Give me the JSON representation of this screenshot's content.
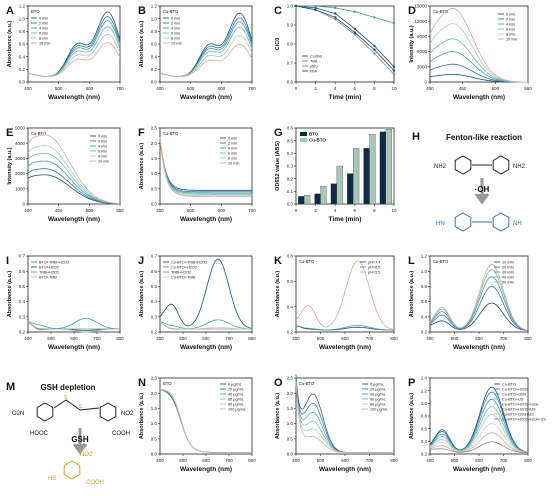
{
  "panels": [
    {
      "id": "A",
      "letter": "A",
      "box_label": "BTO",
      "xlabel": "Wavelength (nm)",
      "ylabel": "Absorbance (a.u.)",
      "xticks": [
        "400",
        "500",
        "600",
        "700"
      ],
      "yticks": [
        "0.0",
        "0.2",
        "0.4",
        "0.6",
        "0.8",
        "1.0",
        "1.2"
      ],
      "legend": [
        "0 min",
        "2 min",
        "4 min",
        "6 min",
        "8 min",
        "10 min"
      ],
      "colors": [
        "#1f4e79",
        "#2e75b6",
        "#41a0a6",
        "#6bbfb4",
        "#9fcfc4",
        "#e3a595"
      ]
    },
    {
      "id": "B",
      "letter": "B",
      "box_label": "Cu-BTO",
      "xlabel": "Wavelength (nm)",
      "ylabel": "Absorbance (a.u.)",
      "xticks": [
        "400",
        "500",
        "600",
        "700"
      ],
      "yticks": [
        "0.0",
        "0.2",
        "0.4",
        "0.6",
        "0.8",
        "1.0",
        "1.2"
      ],
      "legend": [
        "0 min",
        "2 min",
        "4 min",
        "6 min",
        "8 min",
        "10 min"
      ],
      "colors": [
        "#1f4e79",
        "#2e75b6",
        "#41a0a6",
        "#6bbfb4",
        "#9fcfc4",
        "#e3a595"
      ]
    },
    {
      "id": "C",
      "letter": "C",
      "box_label": "",
      "xlabel": "Time (min)",
      "ylabel": "C/C0",
      "xticks": [
        "0",
        "2",
        "4",
        "6",
        "8",
        "10"
      ],
      "yticks": [
        "0.6",
        "0.7",
        "0.8",
        "0.9",
        "1.0"
      ],
      "legend": [
        "Control",
        "TBA",
        "pBQ",
        "FFA"
      ],
      "colors": [
        "#1f4e79",
        "#41a0a6",
        "#888888",
        "#1f4e79"
      ]
    },
    {
      "id": "D",
      "letter": "D",
      "box_label": "Cu-BTO",
      "xlabel": "Wavelength (nm)",
      "ylabel": "Intensity (a.u.)",
      "xticks": [
        "400",
        "450",
        "500",
        "550"
      ],
      "yticks": [
        "0",
        "3000",
        "6000",
        "9000",
        "12000",
        "15000"
      ],
      "legend": [
        "0 min",
        "2 min",
        "4 min",
        "6 min",
        "8 min",
        "10 min"
      ],
      "colors": [
        "#1f4e79",
        "#2e75b6",
        "#41a0a6",
        "#6bbfb4",
        "#9fcfc4",
        "#e3a595"
      ]
    },
    {
      "id": "E",
      "letter": "E",
      "box_label": "Cu-BTO",
      "xlabel": "Wavelength (nm)",
      "ylabel": "Intensity (a.u.)",
      "xticks": [
        "400",
        "450",
        "500",
        "550"
      ],
      "yticks": [
        "0",
        "1000",
        "2000",
        "3000",
        "4000",
        "5000"
      ],
      "legend": [
        "0 min",
        "2 min",
        "4 min",
        "6 min",
        "8 min",
        "10 min"
      ],
      "colors": [
        "#1f4e79",
        "#2e75b6",
        "#41a0a6",
        "#6bbfb4",
        "#9fcfc4",
        "#e3a595"
      ]
    },
    {
      "id": "F",
      "letter": "F",
      "box_label": "Cu-BTO",
      "xlabel": "Wavelength (nm)",
      "ylabel": "Absorbance (a.u.)",
      "xticks": [
        "400",
        "500",
        "600",
        "700"
      ],
      "yticks": [
        "0.0",
        "0.5",
        "1.0",
        "1.5",
        "2.0",
        "2.5"
      ],
      "legend": [
        "0 min",
        "2 min",
        "4 min",
        "6 min",
        "8 min",
        "10 min"
      ],
      "colors": [
        "#1f4e79",
        "#2e75b6",
        "#41a0a6",
        "#6bbfb4",
        "#9fcfc4",
        "#e3a595"
      ]
    },
    {
      "id": "G",
      "letter": "G",
      "box_label": "",
      "xlabel": "Time (min)",
      "ylabel": "OD652 value (ABS)",
      "xticks": [
        "0",
        "2",
        "4",
        "6",
        "8",
        "10"
      ],
      "yticks": [
        "0.0",
        "0.1",
        "0.2",
        "0.3",
        "0.4",
        "0.5",
        "0.6"
      ],
      "legend": [
        "BTO",
        "Cu-BTO"
      ],
      "colors": [
        "#0f2a4a",
        "#a9c6b6"
      ]
    },
    {
      "id": "I",
      "letter": "I",
      "box_label": "",
      "xlabel": "Wavelength (nm)",
      "ylabel": "Absorbance (a.u.)",
      "xticks": [
        "400",
        "500",
        "600",
        "700",
        "800"
      ],
      "yticks": [
        "0.2",
        "0.3",
        "0.4",
        "0.5",
        "0.6",
        "0.7"
      ],
      "legend": [
        "BTO+TMB+H2O2",
        "BTO+H2O2",
        "TMB+H2O2",
        "BTO+TMB"
      ],
      "colors": [
        "#41a0a6",
        "#1f4e79",
        "#888888",
        "#9fcfc4"
      ]
    },
    {
      "id": "J",
      "letter": "J",
      "box_label": "",
      "xlabel": "Wavelength (nm)",
      "ylabel": "Absorbance (a.u.)",
      "xticks": [
        "400",
        "500",
        "600",
        "700",
        "800"
      ],
      "yticks": [
        "0.2",
        "0.3",
        "0.4",
        "0.5",
        "0.6",
        "0.7"
      ],
      "legend": [
        "Cu-BTO+TMB+H2O2",
        "Cu-BTO+H2O2",
        "TMB+H2O2",
        "Cu-BTO+TMB"
      ],
      "colors": [
        "#1f4e79",
        "#41a0a6",
        "#888888",
        "#c9d6c0"
      ]
    },
    {
      "id": "K",
      "letter": "K",
      "box_label": "Cu-BTO",
      "xlabel": "Wavelength (nm)",
      "ylabel": "Absorbance (a.u.)",
      "xticks": [
        "400",
        "500",
        "600",
        "700",
        "800"
      ],
      "yticks": [
        "0.2",
        "0.4",
        "0.6",
        "0.8"
      ],
      "legend": [
        "pH=7.4",
        "pH=6.5",
        "pH=5.5"
      ],
      "colors": [
        "#1f4e79",
        "#41a0a6",
        "#e3a595"
      ]
    },
    {
      "id": "L",
      "letter": "L",
      "box_label": "Cu-BTO",
      "xlabel": "Wavelength (nm)",
      "ylabel": "Absorbance (a.u.)",
      "xticks": [
        "400",
        "500",
        "600",
        "700",
        "800"
      ],
      "yticks": [
        "0.2",
        "0.4",
        "0.6",
        "0.8",
        "1.0",
        "1.2"
      ],
      "legend": [
        "10 mM",
        "20 mM",
        "30 mM",
        "40 mM",
        "50 mM"
      ],
      "colors": [
        "#1f4e79",
        "#2e75b6",
        "#41a0a6",
        "#6bbfb4",
        "#e3a595"
      ]
    },
    {
      "id": "N",
      "letter": "N",
      "box_label": "BTO",
      "xlabel": "Wavelength (nm)",
      "ylabel": "Absorbance (a.u.)",
      "xticks": [
        "400",
        "500",
        "600",
        "700",
        "800"
      ],
      "yticks": [
        "0.0",
        "0.5",
        "1.0",
        "1.5",
        "2.0",
        "2.5"
      ],
      "legend": [
        "0 μg/mL",
        "20 μg/mL",
        "40 μg/mL",
        "60 μg/mL",
        "80 μg/mL",
        "100 μg/mL"
      ],
      "colors": [
        "#1f4e79",
        "#2e75b6",
        "#41a0a6",
        "#6bbfb4",
        "#9fcfc4",
        "#e3a595"
      ]
    },
    {
      "id": "O",
      "letter": "O",
      "box_label": "Cu-BTO",
      "xlabel": "Wavelength (nm)",
      "ylabel": "Absorbance (a.u.)",
      "xticks": [
        "400",
        "500",
        "600",
        "700",
        "800"
      ],
      "yticks": [
        "0.0",
        "0.5",
        "1.0",
        "1.5",
        "2.0",
        "2.5"
      ],
      "legend": [
        "0 μg/mL",
        "20 μg/mL",
        "40 μg/mL",
        "60 μg/mL",
        "80 μg/mL",
        "100 μg/mL"
      ],
      "colors": [
        "#1f4e79",
        "#2e75b6",
        "#41a0a6",
        "#6bbfb4",
        "#9fcfc4",
        "#e3a595"
      ]
    },
    {
      "id": "P",
      "letter": "P",
      "box_label": "",
      "xlabel": "Wavelength (nm)",
      "ylabel": "Absorbance (a.u.)",
      "xticks": [
        "400",
        "500",
        "600",
        "700",
        "800"
      ],
      "yticks": [
        "0.2",
        "0.4",
        "0.6",
        "0.8",
        "1.0",
        "1.2",
        "1.4"
      ],
      "legend": [
        "Cu-BTO",
        "Cu-BTO+H2O2",
        "Cu-BTO+GSH",
        "Cu-BTO+US",
        "Cu-BTO+H2O2+GSH",
        "Cu-BTO+H2O2+US",
        "Cu-BTO+GSH+US",
        "Cu-BTO+H2O2+GSH+US"
      ],
      "colors": [
        "#1f4e79",
        "#2e75b6",
        "#41a0a6",
        "#6bbfb4",
        "#9fcfc4",
        "#c9d6c0",
        "#e3a595",
        "#888888"
      ]
    }
  ],
  "schemes": {
    "H": {
      "letter": "H",
      "title": "Fenton-like reaction",
      "radical": "·OH",
      "nh2": "NH2",
      "hn": "HN",
      "nh": "NH"
    },
    "M": {
      "letter": "M",
      "title": "GSH depletion",
      "reagent": "GSH",
      "o2n": "O2N",
      "no2": "NO2",
      "hooc": "HOOC",
      "cooh": "COOH",
      "hs": "HS"
    }
  },
  "chart_data": [
    {
      "panel": "A",
      "type": "line",
      "x_range": [
        400,
        700
      ],
      "y_range": [
        0,
        1.2
      ],
      "series": [
        {
          "name": "0 min",
          "peak": 1.1
        },
        {
          "name": "2 min",
          "peak": 1.02
        },
        {
          "name": "4 min",
          "peak": 0.95
        },
        {
          "name": "6 min",
          "peak": 0.85
        },
        {
          "name": "8 min",
          "peak": 0.72
        },
        {
          "name": "10 min",
          "peak": 0.58
        }
      ],
      "peak_x": 660
    },
    {
      "panel": "B",
      "type": "line",
      "x_range": [
        400,
        700
      ],
      "y_range": [
        0,
        1.2
      ],
      "series": [
        {
          "name": "0 min",
          "peak": 1.08
        },
        {
          "name": "2 min",
          "peak": 1.0
        },
        {
          "name": "4 min",
          "peak": 0.93
        },
        {
          "name": "6 min",
          "peak": 0.84
        },
        {
          "name": "8 min",
          "peak": 0.7
        },
        {
          "name": "10 min",
          "peak": 0.55
        }
      ],
      "peak_x": 660
    },
    {
      "panel": "C",
      "type": "line",
      "x": [
        0,
        2,
        4,
        6,
        8,
        10
      ],
      "y_range": [
        0.6,
        1.0
      ],
      "series": [
        {
          "name": "Control",
          "values": [
            1.0,
            0.99,
            0.96,
            0.88,
            0.79,
            0.68
          ]
        },
        {
          "name": "TBA",
          "values": [
            1.0,
            1.0,
            0.99,
            0.97,
            0.94,
            0.91
          ]
        },
        {
          "name": "pBQ",
          "values": [
            1.0,
            0.98,
            0.93,
            0.85,
            0.75,
            0.64
          ]
        },
        {
          "name": "FFA",
          "values": [
            1.0,
            0.98,
            0.94,
            0.86,
            0.77,
            0.66
          ]
        }
      ]
    },
    {
      "panel": "D",
      "type": "line",
      "x_range": [
        400,
        550
      ],
      "y_range": [
        0,
        15000
      ],
      "series": [
        {
          "name": "0 min",
          "peak": 1500
        },
        {
          "name": "2 min",
          "peak": 3500
        },
        {
          "name": "4 min",
          "peak": 6000
        },
        {
          "name": "6 min",
          "peak": 8500
        },
        {
          "name": "8 min",
          "peak": 11500
        },
        {
          "name": "10 min",
          "peak": 14500
        }
      ],
      "peak_x": 435
    },
    {
      "panel": "E",
      "type": "line",
      "x_range": [
        400,
        550
      ],
      "y_range": [
        0,
        5000
      ],
      "series": [
        {
          "name": "0 min",
          "peak": 1900
        },
        {
          "name": "2 min",
          "peak": 2300
        },
        {
          "name": "4 min",
          "peak": 2800
        },
        {
          "name": "6 min",
          "peak": 3300
        },
        {
          "name": "8 min",
          "peak": 3800
        },
        {
          "name": "10 min",
          "peak": 4500
        }
      ],
      "peak_x": 430
    },
    {
      "panel": "F",
      "type": "line",
      "x_range": [
        400,
        700
      ],
      "y_range": [
        0,
        2.5
      ],
      "series": [
        {
          "name": "0 min",
          "start": 2.2,
          "tail": 0.45
        },
        {
          "name": "2 min",
          "start": 2.2,
          "tail": 0.4
        },
        {
          "name": "4 min",
          "start": 2.2,
          "tail": 0.36
        },
        {
          "name": "6 min",
          "start": 2.2,
          "tail": 0.32
        },
        {
          "name": "8 min",
          "start": 2.2,
          "tail": 0.28
        },
        {
          "name": "10 min",
          "start": 2.2,
          "tail": 0.25
        }
      ]
    },
    {
      "panel": "G",
      "type": "bar",
      "categories": [
        "0",
        "2",
        "4",
        "6",
        "8",
        "10"
      ],
      "y_range": [
        0,
        0.6
      ],
      "series": [
        {
          "name": "BTO",
          "values": [
            0.06,
            0.08,
            0.16,
            0.24,
            0.44,
            0.57
          ]
        },
        {
          "name": "Cu-BTO",
          "values": [
            0.07,
            0.14,
            0.3,
            0.44,
            0.55,
            0.59
          ]
        }
      ]
    },
    {
      "panel": "I",
      "type": "line",
      "x_range": [
        400,
        800
      ],
      "y_range": [
        0.2,
        0.7
      ],
      "series": [
        {
          "name": "BTO+TMB+H2O2",
          "peak": 0.29
        },
        {
          "name": "BTO+H2O2",
          "peak": 0.21
        },
        {
          "name": "TMB+H2O2",
          "peak": 0.22
        },
        {
          "name": "BTO+TMB",
          "peak": 0.2
        }
      ],
      "peak_x": 652
    },
    {
      "panel": "J",
      "type": "line",
      "x_range": [
        400,
        800
      ],
      "y_range": [
        0.2,
        0.7
      ],
      "series": [
        {
          "name": "Cu-BTO+TMB+H2O2",
          "peak": 0.68
        },
        {
          "name": "Cu-BTO+H2O2",
          "peak": 0.28
        },
        {
          "name": "TMB+H2O2",
          "peak": 0.22
        },
        {
          "name": "Cu-BTO+TMB",
          "peak": 0.23
        }
      ],
      "peak_x": 652
    },
    {
      "panel": "K",
      "type": "line",
      "x_range": [
        400,
        800
      ],
      "y_range": [
        0.1,
        0.9
      ],
      "series": [
        {
          "name": "pH=7.4",
          "peak": 0.15
        },
        {
          "name": "pH=6.5",
          "peak": 0.17
        },
        {
          "name": "pH=5.5",
          "peak": 0.85
        }
      ],
      "peak_x": 652
    },
    {
      "panel": "L",
      "type": "line",
      "x_range": [
        400,
        800
      ],
      "y_range": [
        0.2,
        1.3
      ],
      "series": [
        {
          "name": "10 mM",
          "peak": 0.62
        },
        {
          "name": "20 mM",
          "peak": 0.86
        },
        {
          "name": "30 mM",
          "peak": 1.0
        },
        {
          "name": "40 mM",
          "peak": 1.1
        },
        {
          "name": "50 mM",
          "peak": 1.18
        }
      ],
      "peak_x": 652
    },
    {
      "panel": "N",
      "type": "line",
      "x_range": [
        400,
        800
      ],
      "y_range": [
        0,
        2.5
      ],
      "series": [
        {
          "name": "0 μg/mL",
          "start": 2.1
        },
        {
          "name": "20 μg/mL",
          "start": 2.1
        },
        {
          "name": "40 μg/mL",
          "start": 2.1
        },
        {
          "name": "60 μg/mL",
          "start": 2.1
        },
        {
          "name": "80 μg/mL",
          "start": 2.1
        },
        {
          "name": "100 μg/mL",
          "start": 2.1
        }
      ]
    },
    {
      "panel": "O",
      "type": "line",
      "x_range": [
        400,
        800
      ],
      "y_range": [
        0,
        2.5
      ],
      "series": [
        {
          "name": "0 μg/mL",
          "shoulder": 1.9
        },
        {
          "name": "20 μg/mL",
          "shoulder": 1.6
        },
        {
          "name": "40 μg/mL",
          "shoulder": 1.3
        },
        {
          "name": "60 μg/mL",
          "shoulder": 1.0
        },
        {
          "name": "80 μg/mL",
          "shoulder": 0.75
        },
        {
          "name": "100 μg/mL",
          "shoulder": 0.5
        }
      ]
    },
    {
      "panel": "P",
      "type": "line",
      "x_range": [
        400,
        800
      ],
      "y_range": [
        0.2,
        1.45
      ],
      "series": [
        {
          "name": "Cu-BTO",
          "peak": 1.3
        },
        {
          "name": "Cu-BTO+H2O2",
          "peak": 1.22
        },
        {
          "name": "Cu-BTO+GSH",
          "peak": 1.1
        },
        {
          "name": "Cu-BTO+US",
          "peak": 0.98
        },
        {
          "name": "Cu-BTO+H2O2+GSH",
          "peak": 0.85
        },
        {
          "name": "Cu-BTO+H2O2+US",
          "peak": 0.7
        },
        {
          "name": "Cu-BTO+GSH+US",
          "peak": 0.55
        },
        {
          "name": "Cu-BTO+H2O2+GSH+US",
          "peak": 0.4
        }
      ],
      "peak_x": 652
    }
  ]
}
